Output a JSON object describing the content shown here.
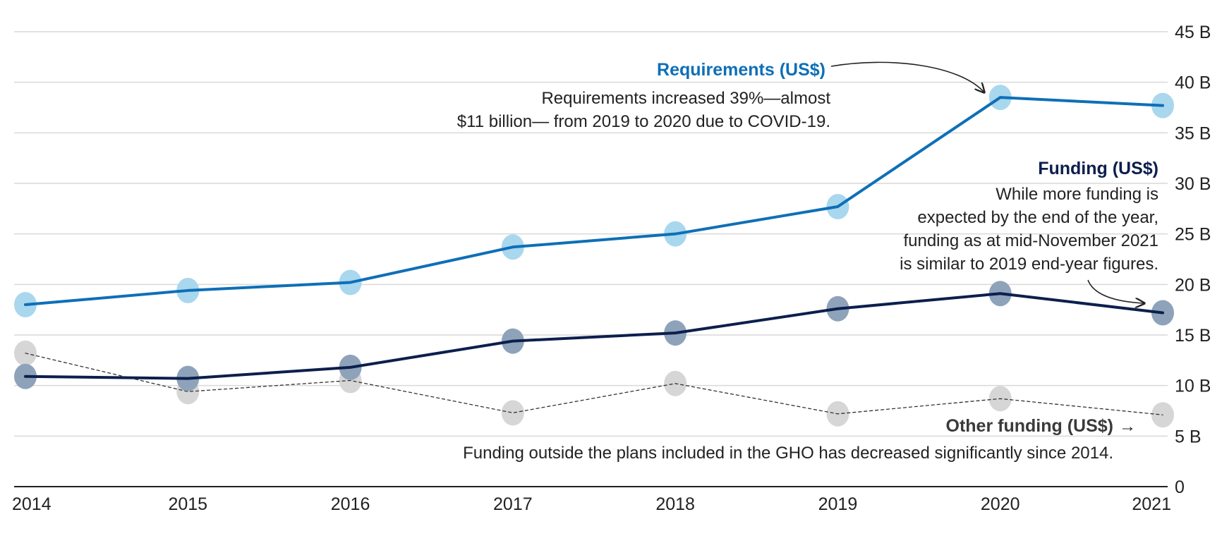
{
  "chart_data": {
    "type": "line",
    "title": "",
    "xlabel": "",
    "ylabel": "",
    "x": [
      "2014",
      "2015",
      "2016",
      "2017",
      "2018",
      "2019",
      "2020",
      "2021"
    ],
    "ylim": [
      0,
      45
    ],
    "y_ticks": [
      {
        "value": 0,
        "label": "0"
      },
      {
        "value": 5,
        "label": "5 B"
      },
      {
        "value": 10,
        "label": "10 B"
      },
      {
        "value": 15,
        "label": "15 B"
      },
      {
        "value": 20,
        "label": "20 B"
      },
      {
        "value": 25,
        "label": "25 B"
      },
      {
        "value": 30,
        "label": "30 B"
      },
      {
        "value": 35,
        "label": "35 B"
      },
      {
        "value": 40,
        "label": "40 B"
      },
      {
        "value": 45,
        "label": "45 B"
      }
    ],
    "grid": true,
    "series": [
      {
        "key": "requirements",
        "name": "Requirements (US$)",
        "values": [
          18.0,
          19.4,
          20.2,
          23.7,
          25.0,
          27.7,
          38.5,
          37.7
        ],
        "line_color": "#0e6fb7",
        "marker_color": "#a9d7ee",
        "dashed": false
      },
      {
        "key": "funding",
        "name": "Funding (US$)",
        "values": [
          10.9,
          10.7,
          11.8,
          14.4,
          15.2,
          17.6,
          19.1,
          17.2
        ],
        "line_color": "#0c1f4d",
        "marker_color": "#8ea3ba",
        "dashed": false
      },
      {
        "key": "other_funding",
        "name": "Other funding (US$)",
        "values": [
          13.2,
          9.4,
          10.5,
          7.3,
          10.2,
          7.2,
          8.7,
          7.1
        ],
        "line_color": "#333333",
        "marker_color": "#d6d6d6",
        "dashed": true
      }
    ],
    "annotations": {
      "requirements": {
        "title": "Requirements (US$)",
        "lines": [
          "Requirements increased 39%—almost",
          "$11 billion— from 2019 to 2020 due to COVID-19."
        ]
      },
      "funding": {
        "title": "Funding (US$)",
        "lines": [
          "While more funding is",
          "expected by the end of the year,",
          "funding as at  mid-November 2021",
          "is similar to 2019 end-year figures."
        ]
      },
      "other_funding": {
        "title": "Other funding (US$)",
        "arrow": "→",
        "lines": [
          "Funding outside the plans included in the GHO has decreased significantly since 2014."
        ]
      }
    }
  }
}
